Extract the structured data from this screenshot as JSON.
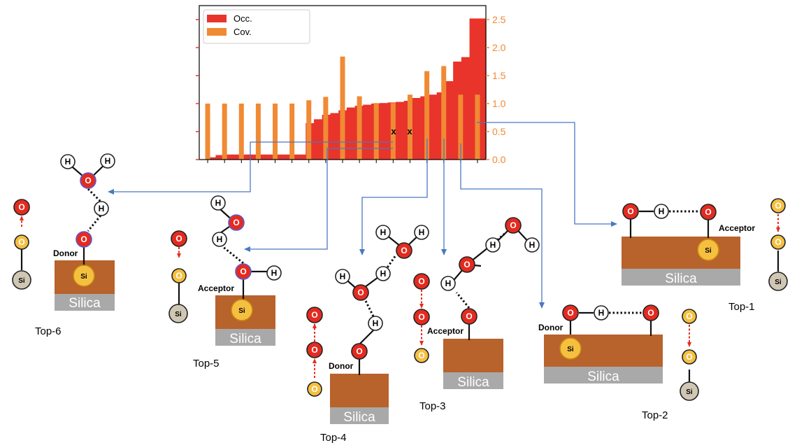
{
  "chart_data": {
    "type": "bar",
    "title": "",
    "xlabel": "",
    "ylabel": "",
    "ylim": [
      0,
      2.6
    ],
    "yticks": [
      "0.0",
      "0.5",
      "1.0",
      "1.5",
      "2.0",
      "2.5"
    ],
    "legend_position": "top-left",
    "series": [
      {
        "name": "Occ.",
        "color": "#e8342a",
        "values": [
          0.0,
          0.04,
          0.08,
          0.09,
          0.09,
          0.09,
          0.09,
          0.09,
          0.09,
          0.09,
          0.09,
          0.09,
          0.09,
          0.65,
          0.72,
          0.8,
          0.83,
          0.88,
          0.93,
          0.96,
          0.98,
          1.0,
          1.01,
          1.02,
          1.03,
          1.05,
          1.1,
          1.13,
          1.16,
          1.2,
          1.4,
          1.75,
          1.83,
          2.52,
          2.52
        ]
      },
      {
        "name": "Cov.",
        "color": "#f08a34",
        "values": [
          1.0,
          1.0,
          1.0,
          1.0,
          1.0,
          1.0,
          1.06,
          1.12,
          1.84,
          1.13,
          1.01,
          1.01,
          1.16,
          1.58,
          1.67,
          1.16,
          1.16
        ]
      }
    ],
    "marks": [
      "x",
      "x"
    ]
  },
  "structures": {
    "top1": {
      "caption": "Top-1",
      "surface": "Silica",
      "role": "Acceptor"
    },
    "top2": {
      "caption": "Top-2",
      "surface": "Silica",
      "role": "Donor"
    },
    "top3": {
      "caption": "Top-3",
      "surface": "Silica",
      "role": "Acceptor"
    },
    "top4": {
      "caption": "Top-4",
      "surface": "Silica",
      "role": "Donor"
    },
    "top5": {
      "caption": "Top-5",
      "surface": "Silica",
      "role": "Acceptor"
    },
    "top6": {
      "caption": "Top-6",
      "surface": "Silica",
      "role": "Donor"
    }
  },
  "atoms": {
    "oxygen": "O",
    "hydrogen": "H",
    "silicon": "Si"
  },
  "colors": {
    "occ": "#e8342a",
    "cov": "#f08a34",
    "oxygen": "#e42b20",
    "silanol_oxygen": "#f5c040",
    "silicon": "#cfc7b3",
    "surface_top": "#b8622c",
    "surface_bottom": "#a9a9a9",
    "arrow": "#4a78c2",
    "axis_right": "#f08a34"
  }
}
